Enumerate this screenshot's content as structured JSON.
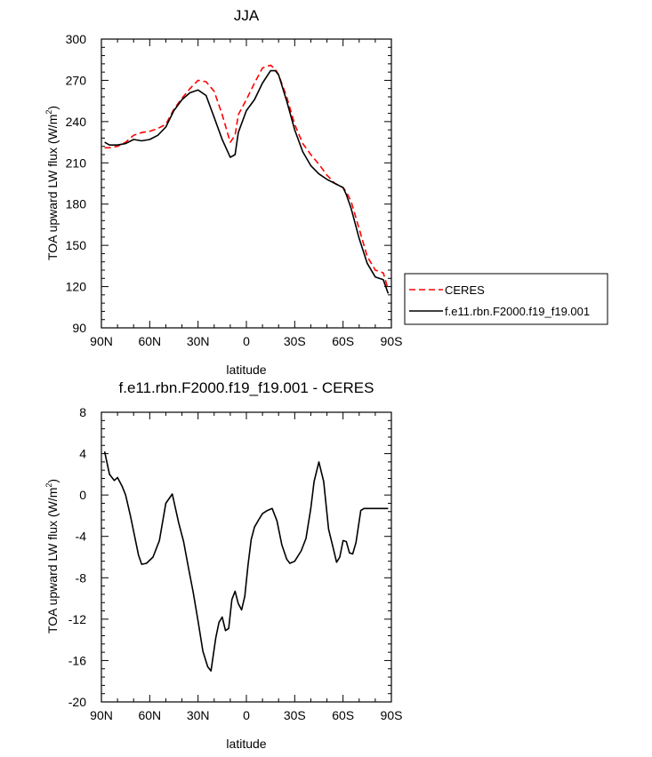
{
  "chart_data": [
    {
      "type": "line",
      "title": "JJA",
      "xlabel": "latitude",
      "ylabel": "TOA upward LW flux (W/m²)",
      "ylabel_main": "TOA upward LW flux (W/m",
      "ylabel_sup": "2",
      "ylabel_close": ")",
      "xlim": [
        90,
        -90
      ],
      "ylim": [
        90,
        300
      ],
      "x_ticks": [
        90,
        60,
        30,
        0,
        -30,
        -60,
        -90
      ],
      "x_tick_labels": [
        "90N",
        "60N",
        "30N",
        "0",
        "30S",
        "60S",
        "90S"
      ],
      "y_ticks": [
        90,
        120,
        150,
        180,
        210,
        240,
        270,
        300
      ],
      "y_tick_labels": [
        "90",
        "120",
        "150",
        "180",
        "210",
        "240",
        "270",
        "300"
      ],
      "grid": false,
      "legend_position": "outside-right",
      "series": [
        {
          "name": "CERES",
          "color": "#ff0000",
          "dash": "dashed",
          "x": [
            88,
            85,
            80,
            75,
            70,
            65,
            60,
            55,
            50,
            45,
            40,
            35,
            30,
            25,
            20,
            15,
            10,
            7,
            5,
            0,
            -5,
            -10,
            -15,
            -18,
            -20,
            -25,
            -30,
            -35,
            -40,
            -45,
            -50,
            -55,
            -60,
            -62,
            -65,
            -70,
            -75,
            -80,
            -85,
            -88
          ],
          "y": [
            221,
            221,
            222,
            225,
            230,
            232,
            233,
            235,
            238,
            249,
            257,
            264,
            270,
            269,
            262,
            245,
            225,
            230,
            245,
            256,
            268,
            279,
            281,
            278,
            274,
            258,
            238,
            224,
            216,
            209,
            201,
            195,
            192,
            189,
            182,
            162,
            142,
            132,
            130,
            118
          ]
        },
        {
          "name": "f.e11.rbn.F2000.f19_f19.001",
          "color": "#000000",
          "dash": "solid",
          "x": [
            88,
            85,
            80,
            75,
            70,
            65,
            60,
            55,
            50,
            45,
            40,
            35,
            30,
            25,
            20,
            15,
            10,
            7,
            5,
            0,
            -5,
            -10,
            -15,
            -18,
            -20,
            -25,
            -30,
            -35,
            -40,
            -45,
            -50,
            -55,
            -60,
            -62,
            -65,
            -70,
            -75,
            -80,
            -85,
            -88
          ],
          "y": [
            225,
            223,
            223,
            224,
            227,
            226,
            227,
            230,
            236,
            248,
            256,
            261,
            263,
            259,
            243,
            227,
            214,
            216,
            232,
            248,
            256,
            268,
            277,
            277,
            274,
            255,
            234,
            218,
            208,
            202,
            198,
            195,
            192,
            187,
            177,
            155,
            137,
            127,
            125,
            115
          ]
        }
      ]
    },
    {
      "type": "line",
      "title": "f.e11.rbn.F2000.f19_f19.001 - CERES",
      "xlabel": "latitude",
      "ylabel": "TOA upward LW flux (W/m²)",
      "ylabel_main": "TOA upward LW flux (W/m",
      "ylabel_sup": "2",
      "ylabel_close": ")",
      "xlim": [
        90,
        -90
      ],
      "ylim": [
        -20,
        8
      ],
      "x_ticks": [
        90,
        60,
        30,
        0,
        -30,
        -60,
        -90
      ],
      "x_tick_labels": [
        "90N",
        "60N",
        "30N",
        "0",
        "30S",
        "60S",
        "90S"
      ],
      "y_ticks": [
        -20,
        -16,
        -12,
        -8,
        -4,
        0,
        4,
        8
      ],
      "y_tick_labels": [
        "-20",
        "-16",
        "-12",
        "-8",
        "-4",
        "0",
        "4",
        "8"
      ],
      "grid": false,
      "series": [
        {
          "color": "#000000",
          "x": [
            88,
            85,
            82,
            80,
            77,
            75,
            72,
            70,
            67,
            65,
            62,
            58,
            54,
            50,
            46,
            42,
            39,
            36,
            33,
            30,
            27,
            24,
            22,
            19,
            17,
            15,
            13,
            11,
            9,
            7,
            5,
            3,
            1,
            -1,
            -3,
            -5,
            -8,
            -10,
            -13,
            -16,
            -19,
            -22,
            -25,
            -27,
            -30,
            -34,
            -37,
            -40,
            -42,
            -45,
            -48,
            -51,
            -54,
            -56,
            -58,
            -60,
            -62,
            -64,
            -66,
            -68,
            -71,
            -73,
            -76,
            -78,
            -80,
            -83,
            -86,
            -88
          ],
          "y": [
            4.2,
            2.0,
            1.4,
            1.7,
            0.8,
            0.0,
            -2.0,
            -3.5,
            -5.8,
            -6.7,
            -6.6,
            -6.0,
            -4.4,
            -0.8,
            0.1,
            -2.7,
            -4.5,
            -7.0,
            -9.4,
            -12.2,
            -15.1,
            -16.6,
            -17.0,
            -13.8,
            -12.3,
            -11.8,
            -13.1,
            -12.9,
            -10.1,
            -9.3,
            -10.5,
            -11.1,
            -9.8,
            -6.8,
            -4.3,
            -3.1,
            -2.3,
            -1.8,
            -1.5,
            -1.3,
            -2.5,
            -4.8,
            -6.2,
            -6.6,
            -6.4,
            -5.4,
            -4.2,
            -1.3,
            1.3,
            3.2,
            1.3,
            -3.3,
            -5.2,
            -6.5,
            -6.0,
            -4.4,
            -4.5,
            -5.6,
            -5.7,
            -4.6,
            -1.5,
            -1.3,
            -1.3,
            -1.3,
            -1.3,
            -1.3,
            -1.3,
            -1.3
          ]
        }
      ]
    }
  ]
}
